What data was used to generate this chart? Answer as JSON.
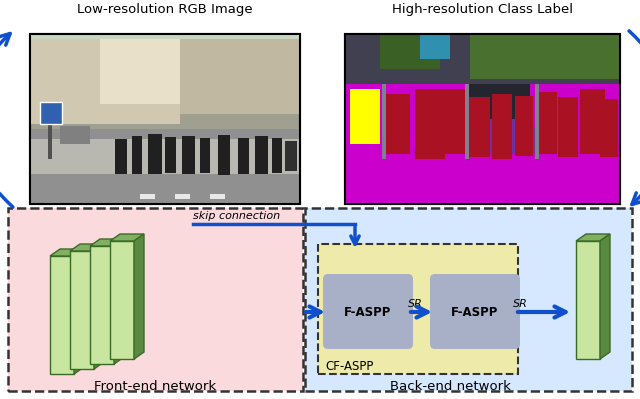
{
  "title_left": "Low-resolution RGB Image",
  "title_right": "High-resolution Class Label",
  "frontend_label": "Front-end network",
  "backend_label": "Back-end network",
  "cfaspp_label": "CF-ASPP",
  "skip_label": "skip connection",
  "faspp1_label": "F-ASPP",
  "faspp2_label": "F-ASPP",
  "sr1_label": "SR",
  "sr2_label": "SR",
  "colors": {
    "frontend_bg": "#FADADD",
    "backend_bg": "#D6E8FF",
    "cfaspp_bg": "#EEEAAA",
    "faspp_box": "#A8B0C8",
    "layer_face": "#C8E6A0",
    "layer_side": "#5A8A40",
    "layer_top": "#80B060",
    "arrow_blue": "#1050CC",
    "text_color": "#000000"
  },
  "fig_width": 6.4,
  "fig_height": 3.99
}
